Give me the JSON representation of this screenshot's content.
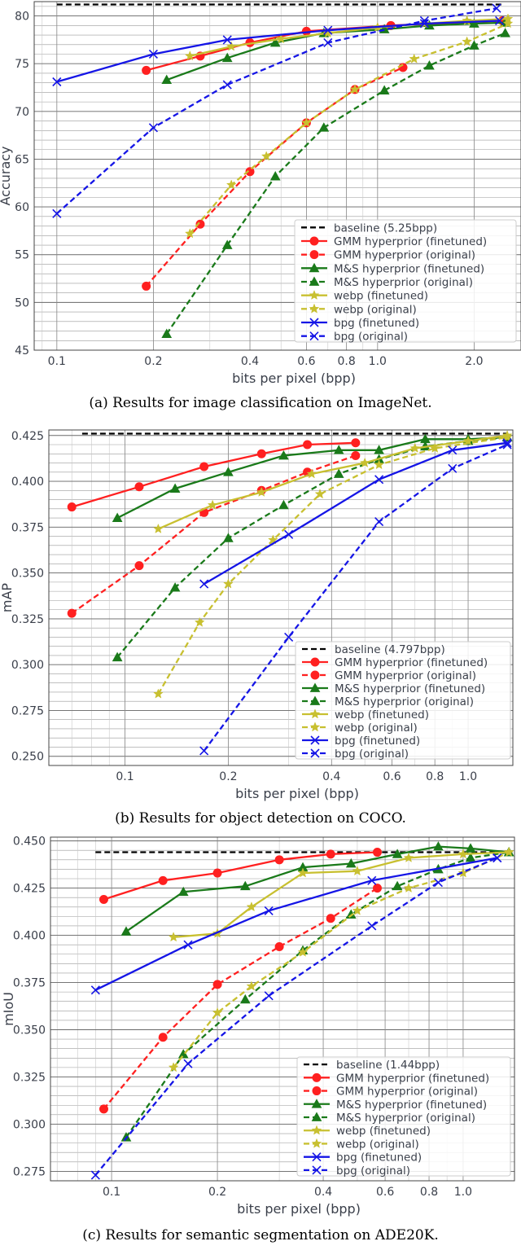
{
  "colors": {
    "baseline": "#000000",
    "gmm": "#ff2020",
    "ms": "#1a7a1a",
    "webp": "#c8c030",
    "bpg": "#1515e6"
  },
  "chart_data": [
    {
      "type": "line",
      "caption": "(a) Results for image classification on ImageNet.",
      "xlabel": "bits per pixel (bpp)",
      "ylabel": "Accuracy",
      "xscale": "log",
      "xlim": [
        0.085,
        2.8
      ],
      "ylim": [
        45,
        81.5
      ],
      "xticks": [
        0.1,
        0.2,
        0.4,
        0.6,
        0.8,
        1.0,
        2.0
      ],
      "xticklabels": [
        "0.1",
        "0.2",
        "0.4",
        "0.6",
        "0.8",
        "1.0",
        "2.0"
      ],
      "yticks": [
        45,
        50,
        55,
        60,
        65,
        70,
        75,
        80
      ],
      "yticklabels": [
        "45",
        "50",
        "55",
        "60",
        "65",
        "70",
        "75",
        "80"
      ],
      "legend_loc": "lower-right",
      "series": [
        {
          "name": "baseline (5.25bpp)",
          "key": "baseline",
          "dash": "dashed",
          "marker": "none",
          "x": [
            0.1,
            2.45
          ],
          "y": [
            81.2,
            81.2
          ]
        },
        {
          "name": "GMM hyperprior (finetuned)",
          "key": "gmm",
          "dash": "solid",
          "marker": "circle",
          "x": [
            0.19,
            0.28,
            0.4,
            0.6,
            1.1,
            2.45
          ],
          "y": [
            74.3,
            75.8,
            77.2,
            78.4,
            79.0,
            79.5
          ]
        },
        {
          "name": "GMM hyperprior (original)",
          "key": "gmm",
          "dash": "dashed",
          "marker": "circle",
          "x": [
            0.19,
            0.28,
            0.4,
            0.6,
            0.85,
            1.2
          ],
          "y": [
            51.7,
            58.2,
            63.7,
            68.8,
            72.3,
            74.6
          ]
        },
        {
          "name": "M&S hyperprior (finetuned)",
          "key": "ms",
          "dash": "solid",
          "marker": "triangle",
          "x": [
            0.22,
            0.34,
            0.48,
            0.68,
            1.05,
            1.45,
            2.0,
            2.5
          ],
          "y": [
            73.3,
            75.6,
            77.2,
            78.2,
            78.6,
            79.0,
            79.2,
            79.3
          ]
        },
        {
          "name": "M&S hyperprior (original)",
          "key": "ms",
          "dash": "dashed",
          "marker": "triangle",
          "x": [
            0.22,
            0.34,
            0.48,
            0.68,
            1.05,
            1.45,
            2.0,
            2.5
          ],
          "y": [
            46.7,
            56.0,
            63.2,
            68.3,
            72.2,
            74.8,
            76.9,
            78.2
          ]
        },
        {
          "name": "webp (finetuned)",
          "key": "webp",
          "dash": "solid",
          "marker": "star",
          "x": [
            0.26,
            0.35,
            0.5,
            0.7,
            1.0,
            1.4,
            1.9,
            2.55
          ],
          "y": [
            75.8,
            76.8,
            77.6,
            78.2,
            78.8,
            79.2,
            79.5,
            79.7
          ]
        },
        {
          "name": "webp (original)",
          "key": "webp",
          "dash": "dashed",
          "marker": "star",
          "x": [
            0.26,
            0.35,
            0.45,
            0.6,
            0.85,
            1.3,
            1.9,
            2.55
          ],
          "y": [
            57.2,
            62.3,
            65.3,
            68.8,
            72.3,
            75.5,
            77.3,
            79.2
          ]
        },
        {
          "name": "bpg (finetuned)",
          "key": "bpg",
          "dash": "solid",
          "marker": "x",
          "x": [
            0.1,
            0.2,
            0.34,
            0.7,
            1.4,
            2.4
          ],
          "y": [
            73.1,
            76.0,
            77.5,
            78.5,
            79.2,
            79.5
          ]
        },
        {
          "name": "bpg (original)",
          "key": "bpg",
          "dash": "dashed",
          "marker": "x",
          "x": [
            0.1,
            0.2,
            0.34,
            0.7,
            1.4,
            2.35
          ],
          "y": [
            59.3,
            68.3,
            72.8,
            77.2,
            79.5,
            80.8
          ]
        }
      ]
    },
    {
      "type": "line",
      "caption": "(b) Results for object detection on COCO.",
      "xlabel": "bits per pixel (bpp)",
      "ylabel": "mAP",
      "xscale": "log",
      "xlim": [
        0.06,
        1.35
      ],
      "ylim": [
        0.245,
        0.428
      ],
      "xticks": [
        0.1,
        0.2,
        0.4,
        0.6,
        0.8,
        1.0
      ],
      "xticklabels": [
        "0.1",
        "0.2",
        "0.4",
        "0.6",
        "0.8",
        "1.0"
      ],
      "yticks": [
        0.25,
        0.275,
        0.3,
        0.325,
        0.35,
        0.375,
        0.4,
        0.425
      ],
      "yticklabels": [
        "0.250",
        "0.275",
        "0.300",
        "0.325",
        "0.350",
        "0.375",
        "0.400",
        "0.425"
      ],
      "legend_loc": "lower-right",
      "series": [
        {
          "name": "baseline (4.797bpp)",
          "key": "baseline",
          "dash": "dashed",
          "marker": "none",
          "x": [
            0.075,
            1.3
          ],
          "y": [
            0.426,
            0.426
          ]
        },
        {
          "name": "GMM hyperprior (finetuned)",
          "key": "gmm",
          "dash": "solid",
          "marker": "circle",
          "x": [
            0.07,
            0.11,
            0.17,
            0.25,
            0.34,
            0.47
          ],
          "y": [
            0.386,
            0.397,
            0.408,
            0.415,
            0.42,
            0.421
          ]
        },
        {
          "name": "GMM hyperprior (original)",
          "key": "gmm",
          "dash": "dashed",
          "marker": "circle",
          "x": [
            0.07,
            0.11,
            0.17,
            0.25,
            0.34,
            0.47
          ],
          "y": [
            0.328,
            0.354,
            0.383,
            0.395,
            0.405,
            0.414
          ]
        },
        {
          "name": "M&S hyperprior (finetuned)",
          "key": "ms",
          "dash": "solid",
          "marker": "triangle",
          "x": [
            0.095,
            0.14,
            0.2,
            0.29,
            0.42,
            0.55,
            0.75,
            1.0,
            1.3
          ],
          "y": [
            0.38,
            0.396,
            0.405,
            0.414,
            0.417,
            0.417,
            0.423,
            0.423,
            0.424
          ]
        },
        {
          "name": "M&S hyperprior (original)",
          "key": "ms",
          "dash": "dashed",
          "marker": "triangle",
          "x": [
            0.095,
            0.14,
            0.2,
            0.29,
            0.42,
            0.55,
            0.75,
            1.0,
            1.3
          ],
          "y": [
            0.304,
            0.342,
            0.369,
            0.387,
            0.404,
            0.412,
            0.419,
            0.422,
            0.424
          ]
        },
        {
          "name": "webp (finetuned)",
          "key": "webp",
          "dash": "solid",
          "marker": "star",
          "x": [
            0.125,
            0.18,
            0.25,
            0.35,
            0.5,
            0.7,
            1.0,
            1.3
          ],
          "y": [
            0.374,
            0.387,
            0.394,
            0.404,
            0.41,
            0.418,
            0.422,
            0.425
          ]
        },
        {
          "name": "webp (original)",
          "key": "webp",
          "dash": "dashed",
          "marker": "star",
          "x": [
            0.125,
            0.165,
            0.2,
            0.27,
            0.37,
            0.55,
            0.8,
            1.3
          ],
          "y": [
            0.284,
            0.323,
            0.344,
            0.368,
            0.393,
            0.409,
            0.418,
            0.424
          ]
        },
        {
          "name": "bpg (finetuned)",
          "key": "bpg",
          "dash": "solid",
          "marker": "x",
          "x": [
            0.17,
            0.3,
            0.55,
            0.9,
            1.3
          ],
          "y": [
            0.344,
            0.371,
            0.401,
            0.417,
            0.421
          ]
        },
        {
          "name": "bpg (original)",
          "key": "bpg",
          "dash": "dashed",
          "marker": "x",
          "x": [
            0.17,
            0.3,
            0.55,
            0.9,
            1.3
          ],
          "y": [
            0.253,
            0.315,
            0.378,
            0.407,
            0.42
          ]
        }
      ]
    },
    {
      "type": "line",
      "caption": "(c) Results for semantic segmentation on ADE20K.",
      "xlabel": "bits per pixel (bpp)",
      "ylabel": "mIoU",
      "xscale": "log",
      "xlim": [
        0.067,
        1.4
      ],
      "ylim": [
        0.27,
        0.452
      ],
      "xticks": [
        0.1,
        0.2,
        0.4,
        0.6,
        0.8,
        1.0
      ],
      "xticklabels": [
        "0.1",
        "0.2",
        "0.4",
        "0.6",
        "0.8",
        "1.0"
      ],
      "yticks": [
        0.275,
        0.3,
        0.325,
        0.35,
        0.375,
        0.4,
        0.425,
        0.45
      ],
      "yticklabels": [
        "0.275",
        "0.300",
        "0.325",
        "0.350",
        "0.375",
        "0.400",
        "0.425",
        "0.450"
      ],
      "legend_loc": "lower-right",
      "series": [
        {
          "name": "baseline (1.44bpp)",
          "key": "baseline",
          "dash": "dashed",
          "marker": "none",
          "x": [
            0.09,
            1.38
          ],
          "y": [
            0.444,
            0.444
          ]
        },
        {
          "name": "GMM hyperprior (finetuned)",
          "key": "gmm",
          "dash": "solid",
          "marker": "circle",
          "x": [
            0.095,
            0.14,
            0.2,
            0.3,
            0.42,
            0.57
          ],
          "y": [
            0.419,
            0.429,
            0.433,
            0.44,
            0.443,
            0.444
          ]
        },
        {
          "name": "GMM hyperprior (original)",
          "key": "gmm",
          "dash": "dashed",
          "marker": "circle",
          "x": [
            0.095,
            0.14,
            0.2,
            0.3,
            0.42,
            0.57
          ],
          "y": [
            0.308,
            0.346,
            0.374,
            0.394,
            0.409,
            0.425
          ]
        },
        {
          "name": "M&S hyperprior (finetuned)",
          "key": "ms",
          "dash": "solid",
          "marker": "triangle",
          "x": [
            0.11,
            0.16,
            0.24,
            0.35,
            0.48,
            0.65,
            0.85,
            1.05,
            1.35
          ],
          "y": [
            0.402,
            0.423,
            0.426,
            0.436,
            0.438,
            0.443,
            0.447,
            0.446,
            0.444
          ]
        },
        {
          "name": "M&S hyperprior (original)",
          "key": "ms",
          "dash": "dashed",
          "marker": "triangle",
          "x": [
            0.11,
            0.16,
            0.24,
            0.35,
            0.48,
            0.65,
            0.85,
            1.05,
            1.35
          ],
          "y": [
            0.293,
            0.337,
            0.366,
            0.392,
            0.411,
            0.426,
            0.435,
            0.441,
            0.444
          ]
        },
        {
          "name": "webp (finetuned)",
          "key": "webp",
          "dash": "solid",
          "marker": "star",
          "x": [
            0.15,
            0.2,
            0.25,
            0.35,
            0.5,
            0.7,
            1.0,
            1.35
          ],
          "y": [
            0.399,
            0.401,
            0.415,
            0.433,
            0.434,
            0.441,
            0.443,
            0.444
          ]
        },
        {
          "name": "webp (original)",
          "key": "webp",
          "dash": "dashed",
          "marker": "star",
          "x": [
            0.15,
            0.2,
            0.25,
            0.35,
            0.5,
            0.7,
            1.0,
            1.35
          ],
          "y": [
            0.33,
            0.359,
            0.373,
            0.391,
            0.413,
            0.425,
            0.433,
            0.444
          ]
        },
        {
          "name": "bpg (finetuned)",
          "key": "bpg",
          "dash": "solid",
          "marker": "x",
          "x": [
            0.09,
            0.165,
            0.28,
            0.55,
            1.25
          ],
          "y": [
            0.371,
            0.395,
            0.413,
            0.429,
            0.441
          ]
        },
        {
          "name": "bpg (original)",
          "key": "bpg",
          "dash": "dashed",
          "marker": "x",
          "x": [
            0.09,
            0.165,
            0.28,
            0.55,
            0.85,
            1.25
          ],
          "y": [
            0.273,
            0.332,
            0.368,
            0.405,
            0.428,
            0.441
          ]
        }
      ]
    }
  ]
}
